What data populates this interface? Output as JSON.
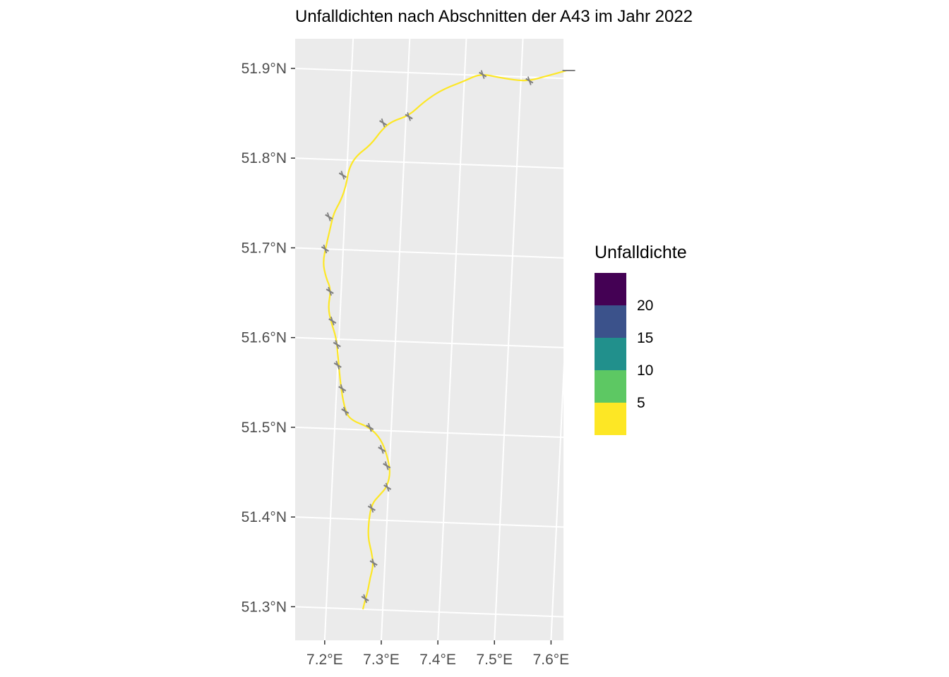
{
  "title": "Unfalldichten nach Abschnitten der A43 im Jahr 2022",
  "axes": {
    "lat_ticks": [
      "51.9°N",
      "51.8°N",
      "51.7°N",
      "51.6°N",
      "51.5°N",
      "51.4°N",
      "51.3°N"
    ],
    "lon_ticks": [
      "7.2°E",
      "7.3°E",
      "7.4°E",
      "7.5°E",
      "7.6°E"
    ]
  },
  "legend": {
    "title": "Unfalldichte",
    "breaks": [
      "20",
      "15",
      "10",
      "5"
    ],
    "colors": [
      "#440154",
      "#3B528B",
      "#21908C",
      "#5DC863",
      "#FDE725"
    ]
  },
  "chart_data": {
    "type": "map",
    "title": "Unfalldichten nach Abschnitten der A43 im Jahr 2022",
    "route_points_lon_lat": [
      [
        7.265,
        51.3
      ],
      [
        7.268,
        51.31
      ],
      [
        7.272,
        51.32
      ],
      [
        7.275,
        51.335
      ],
      [
        7.28,
        51.35
      ],
      [
        7.275,
        51.365
      ],
      [
        7.268,
        51.38
      ],
      [
        7.268,
        51.4
      ],
      [
        7.272,
        51.418
      ],
      [
        7.285,
        51.428
      ],
      [
        7.298,
        51.438
      ],
      [
        7.302,
        51.455
      ],
      [
        7.295,
        51.472
      ],
      [
        7.283,
        51.49
      ],
      [
        7.262,
        51.503
      ],
      [
        7.225,
        51.511
      ],
      [
        7.215,
        51.525
      ],
      [
        7.207,
        51.548
      ],
      [
        7.2,
        51.58
      ],
      [
        7.195,
        51.602
      ],
      [
        7.185,
        51.618
      ],
      [
        7.178,
        51.635
      ],
      [
        7.182,
        51.655
      ],
      [
        7.172,
        51.668
      ],
      [
        7.165,
        51.685
      ],
      [
        7.17,
        51.705
      ],
      [
        7.175,
        51.722
      ],
      [
        7.18,
        51.74
      ],
      [
        7.192,
        51.755
      ],
      [
        7.2,
        51.772
      ],
      [
        7.203,
        51.79
      ],
      [
        7.215,
        51.805
      ],
      [
        7.24,
        51.818
      ],
      [
        7.258,
        51.835
      ],
      [
        7.275,
        51.845
      ],
      [
        7.305,
        51.852
      ],
      [
        7.33,
        51.868
      ],
      [
        7.36,
        51.882
      ],
      [
        7.4,
        51.893
      ],
      [
        7.428,
        51.902
      ],
      [
        7.465,
        51.898
      ],
      [
        7.51,
        51.895
      ],
      [
        7.545,
        51.902
      ],
      [
        7.58,
        51.909
      ]
    ],
    "segment_color": "#FDE725",
    "junction_color": "#808080",
    "junctions_lon_lat": [
      [
        7.268,
        51.312
      ],
      [
        7.28,
        51.352
      ],
      [
        7.272,
        51.413
      ],
      [
        7.298,
        51.437
      ],
      [
        7.295,
        51.461
      ],
      [
        7.285,
        51.479
      ],
      [
        7.262,
        51.503
      ],
      [
        7.217,
        51.52
      ],
      [
        7.21,
        51.545
      ],
      [
        7.2,
        51.571
      ],
      [
        7.197,
        51.594
      ],
      [
        7.187,
        51.62
      ],
      [
        7.18,
        51.653
      ],
      [
        7.168,
        51.7
      ],
      [
        7.172,
        51.736
      ],
      [
        7.193,
        51.783
      ],
      [
        7.26,
        51.843
      ],
      [
        7.305,
        51.851
      ],
      [
        7.432,
        51.901
      ],
      [
        7.515,
        51.896
      ]
    ],
    "lon_range": [
      7.14,
      7.61
    ],
    "lat_range": [
      51.27,
      51.94
    ],
    "legend": {
      "title": "Unfalldichte",
      "breaks": [
        20,
        15,
        10,
        5
      ],
      "colors": [
        "#440154",
        "#3B528B",
        "#21908C",
        "#5DC863",
        "#FDE725"
      ]
    }
  }
}
